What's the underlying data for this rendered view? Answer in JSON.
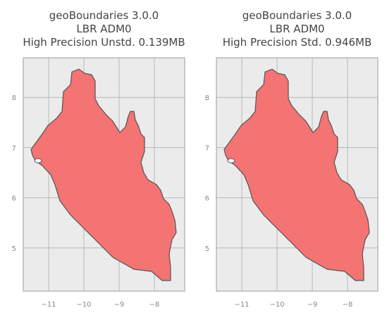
{
  "chart_data": [
    {
      "type": "map",
      "title_lines": [
        "geoBoundaries 3.0.0",
        "LBR ADM0",
        "High Precision Unstd. 0.139MB"
      ],
      "xlim": [
        -11.72,
        -7.14
      ],
      "ylim": [
        4.14,
        8.79
      ],
      "xticks": [
        {
          "value": -11,
          "label": "−11"
        },
        {
          "value": -10,
          "label": "−10"
        },
        {
          "value": -9,
          "label": "−9"
        },
        {
          "value": -8,
          "label": "−8"
        }
      ],
      "yticks": [
        5,
        6,
        7,
        8
      ],
      "grid": true,
      "color": "#f47373"
    },
    {
      "type": "map",
      "title_lines": [
        "geoBoundaries 3.0.0",
        "LBR ADM0",
        "High Precision Std. 0.946MB"
      ],
      "xlim": [
        -11.72,
        -7.14
      ],
      "ylim": [
        4.14,
        8.79
      ],
      "xticks": [
        {
          "value": -11,
          "label": "−11"
        },
        {
          "value": -10,
          "label": "−10"
        },
        {
          "value": -9,
          "label": "−9"
        },
        {
          "value": -8,
          "label": "−8"
        }
      ],
      "yticks": [
        5,
        6,
        7,
        8
      ],
      "grid": true,
      "color": "#f47373"
    }
  ]
}
